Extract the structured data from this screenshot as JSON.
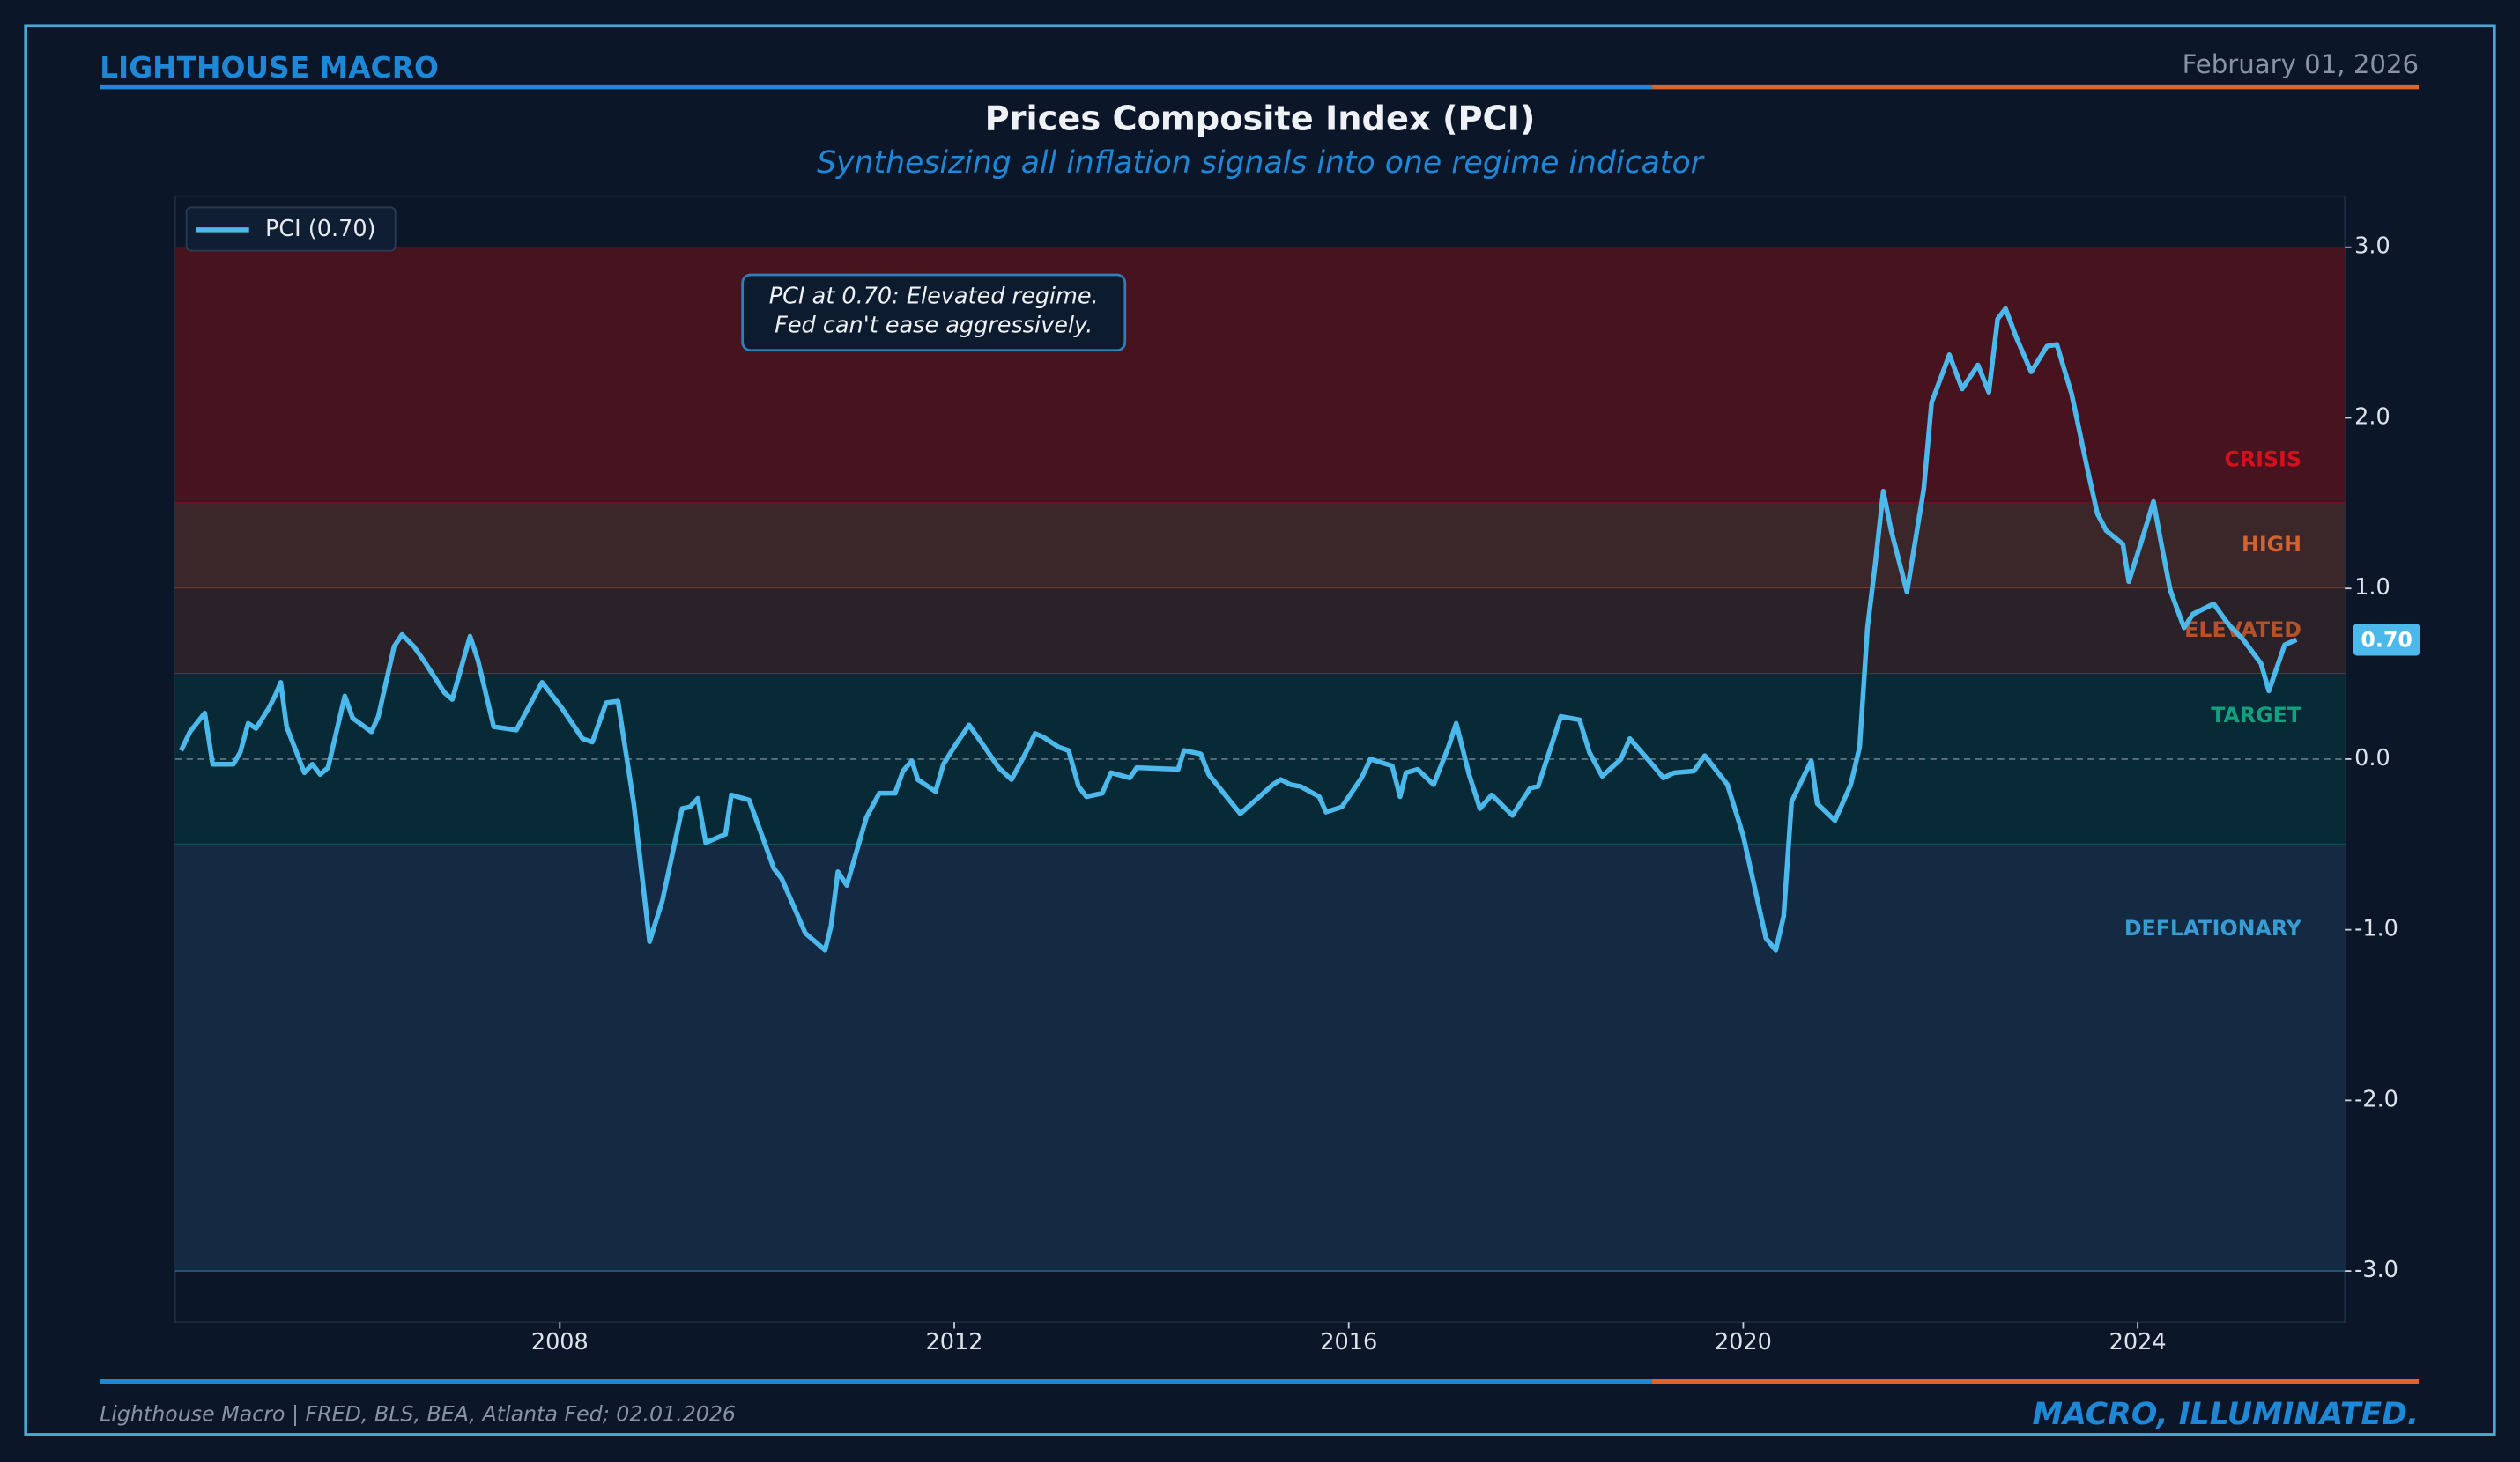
{
  "header": {
    "brand": "LIGHTHOUSE MACRO",
    "date": "February 01, 2026"
  },
  "footer": {
    "source": "Lighthouse Macro | FRED, BLS, BEA, Atlanta Fed; 02.01.2026",
    "tagline": "MACRO, ILLUMINATED."
  },
  "chart_data": {
    "type": "line",
    "title": "Prices Composite Index (PCI)",
    "subtitle": "Synthesizing all inflation signals into one regime indicator",
    "annotation": "PCI at 0.70: Elevated regime.\nFed can't ease aggressively.",
    "last_value_label": "0.70",
    "legend": "upper left",
    "grid": false,
    "xlim": [
      2004.1,
      2026.1
    ],
    "xticks": [
      2008,
      2012,
      2016,
      2020,
      2024
    ],
    "ylim": [
      -3.3,
      3.3
    ],
    "yticks": [
      {
        "value": -3,
        "label": "-3.0"
      },
      {
        "value": -2,
        "label": "-2.0"
      },
      {
        "value": -1,
        "label": "-1.0"
      },
      {
        "value": 0,
        "label": "0.0"
      },
      {
        "value": 1,
        "label": "1.0"
      },
      {
        "value": 2,
        "label": "2.0"
      },
      {
        "value": 3,
        "label": "3.0"
      }
    ],
    "bands": [
      {
        "label": "CRISIS",
        "lower": 1.5,
        "upper": 3.0,
        "color": "#46131f",
        "label_color": "#d3101e"
      },
      {
        "label": "HIGH",
        "lower": 1.0,
        "upper": 1.5,
        "color": "#3b2729",
        "label_color": "#d2622f"
      },
      {
        "label": "ELEVATED",
        "lower": 0.5,
        "upper": 1.0,
        "color": "#2b2129",
        "label_color": "#b4522b"
      },
      {
        "label": "TARGET",
        "lower": -0.5,
        "upper": 0.5,
        "color": "#082936",
        "label_color": "#12a07f"
      },
      {
        "label": "DEFLATIONARY",
        "lower": -3.0,
        "upper": -0.5,
        "color": "#142a43",
        "label_color": "#3a9bd2"
      }
    ],
    "x": [
      2004.16,
      2004.25,
      2004.4,
      2004.48,
      2004.69,
      2004.76,
      2004.84,
      2004.92,
      2005.05,
      2005.12,
      2005.17,
      2005.23,
      2005.31,
      2005.41,
      2005.49,
      2005.57,
      2005.65,
      2005.82,
      2005.9,
      2006.09,
      2006.16,
      2006.32,
      2006.4,
      2006.52,
      2006.63,
      2006.83,
      2006.91,
      2007.09,
      2007.17,
      2007.33,
      2007.56,
      2007.82,
      2008.02,
      2008.23,
      2008.33,
      2008.47,
      2008.59,
      2008.75,
      2008.91,
      2009.04,
      2009.24,
      2009.32,
      2009.4,
      2009.48,
      2009.68,
      2009.74,
      2009.92,
      2010.17,
      2010.25,
      2010.49,
      2010.69,
      2010.75,
      2010.82,
      2010.91,
      2011.11,
      2011.24,
      2011.4,
      2011.48,
      2011.57,
      2011.63,
      2011.81,
      2011.89,
      2012.02,
      2012.15,
      2012.32,
      2012.45,
      2012.58,
      2012.71,
      2012.82,
      2012.9,
      2013.06,
      2013.16,
      2013.26,
      2013.34,
      2013.5,
      2013.59,
      2013.78,
      2013.85,
      2014.27,
      2014.33,
      2014.5,
      2014.58,
      2014.9,
      2015.23,
      2015.31,
      2015.41,
      2015.51,
      2015.7,
      2015.77,
      2015.93,
      2016.13,
      2016.22,
      2016.44,
      2016.52,
      2016.58,
      2016.7,
      2016.86,
      2017.01,
      2017.09,
      2017.22,
      2017.33,
      2017.45,
      2017.66,
      2017.84,
      2017.92,
      2018.15,
      2018.34,
      2018.44,
      2018.57,
      2018.76,
      2018.85,
      2019.09,
      2019.19,
      2019.3,
      2019.5,
      2019.61,
      2019.84,
      2020.0,
      2020.23,
      2020.33,
      2020.41,
      2020.49,
      2020.69,
      2020.75,
      2020.93,
      2021.09,
      2021.18,
      2021.26,
      2021.34,
      2021.42,
      2021.5,
      2021.66,
      2021.83,
      2021.91,
      2022.09,
      2022.22,
      2022.38,
      2022.49,
      2022.58,
      2022.66,
      2022.77,
      2022.92,
      2023.08,
      2023.18,
      2023.33,
      2023.49,
      2023.59,
      2023.68,
      2023.85,
      2023.91,
      2024.04,
      2024.16,
      2024.24,
      2024.33,
      2024.47,
      2024.56,
      2024.77,
      2024.92,
      2025.07,
      2025.25,
      2025.33,
      2025.49,
      2025.61
    ],
    "series": [
      {
        "name": "PCI (0.70)",
        "color": "#4cb9ec",
        "values": [
          0.05,
          0.16,
          0.27,
          -0.03,
          -0.03,
          0.04,
          0.21,
          0.18,
          0.3,
          0.38,
          0.45,
          0.19,
          0.07,
          -0.08,
          -0.03,
          -0.09,
          -0.05,
          0.37,
          0.24,
          0.16,
          0.25,
          0.66,
          0.73,
          0.66,
          0.57,
          0.39,
          0.35,
          0.72,
          0.58,
          0.19,
          0.17,
          0.45,
          0.3,
          0.12,
          0.1,
          0.33,
          0.34,
          -0.26,
          -1.07,
          -0.83,
          -0.29,
          -0.28,
          -0.23,
          -0.49,
          -0.44,
          -0.21,
          -0.24,
          -0.64,
          -0.7,
          -1.02,
          -1.12,
          -0.98,
          -0.66,
          -0.74,
          -0.34,
          -0.2,
          -0.2,
          -0.07,
          -0.01,
          -0.12,
          -0.19,
          -0.03,
          0.09,
          0.2,
          0.06,
          -0.05,
          -0.12,
          0.02,
          0.15,
          0.13,
          0.07,
          0.05,
          -0.16,
          -0.22,
          -0.2,
          -0.08,
          -0.11,
          -0.05,
          -0.06,
          0.05,
          0.03,
          -0.09,
          -0.32,
          -0.15,
          -0.12,
          -0.15,
          -0.16,
          -0.22,
          -0.31,
          -0.28,
          -0.11,
          0.0,
          -0.04,
          -0.22,
          -0.08,
          -0.06,
          -0.15,
          0.07,
          0.21,
          -0.09,
          -0.29,
          -0.21,
          -0.33,
          -0.17,
          -0.16,
          0.25,
          0.23,
          0.04,
          -0.1,
          0.0,
          0.12,
          -0.04,
          -0.11,
          -0.08,
          -0.07,
          0.02,
          -0.15,
          -0.45,
          -1.05,
          -1.12,
          -0.92,
          -0.25,
          -0.01,
          -0.26,
          -0.36,
          -0.15,
          0.07,
          0.77,
          1.15,
          1.57,
          1.34,
          0.98,
          1.58,
          2.09,
          2.37,
          2.17,
          2.31,
          2.15,
          2.58,
          2.64,
          2.47,
          2.27,
          2.42,
          2.43,
          2.14,
          1.7,
          1.44,
          1.34,
          1.26,
          1.04,
          1.28,
          1.51,
          1.26,
          0.99,
          0.77,
          0.85,
          0.91,
          0.79,
          0.7,
          0.56,
          0.4,
          0.67,
          0.7
        ]
      }
    ]
  }
}
